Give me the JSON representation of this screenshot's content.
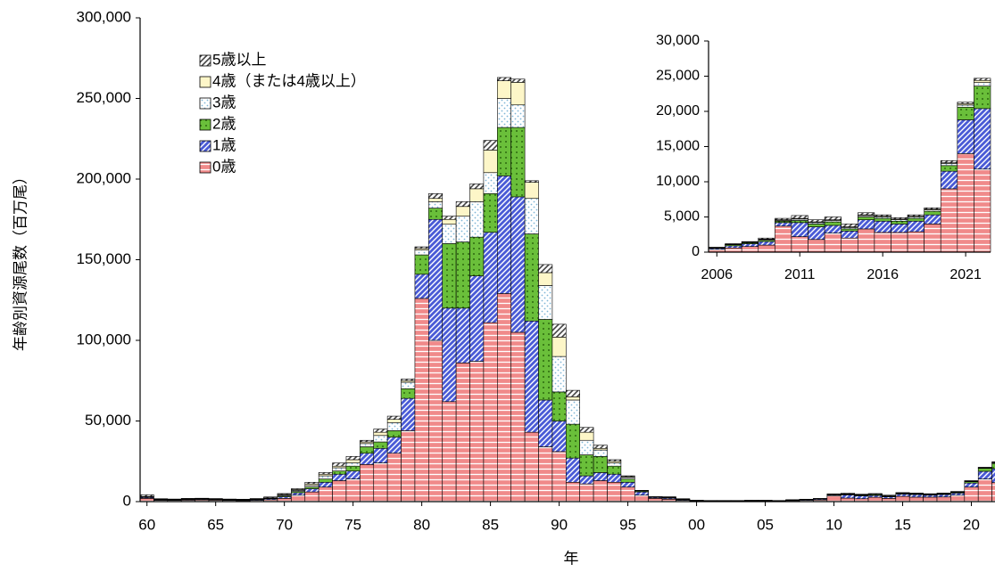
{
  "chart_data": [
    {
      "type": "bar",
      "stacked": true,
      "x_label": "年",
      "y_label": "年齢別資源尾数（百万尾）",
      "x": [
        1960,
        1961,
        1962,
        1963,
        1964,
        1965,
        1966,
        1967,
        1968,
        1969,
        1970,
        1971,
        1972,
        1973,
        1974,
        1975,
        1976,
        1977,
        1978,
        1979,
        1980,
        1981,
        1982,
        1983,
        1984,
        1985,
        1986,
        1987,
        1988,
        1989,
        1990,
        1991,
        1992,
        1993,
        1994,
        1995,
        1996,
        1997,
        1998,
        1999,
        2000,
        2001,
        2002,
        2003,
        2004,
        2005,
        2006,
        2007,
        2008,
        2009,
        2010,
        2011,
        2012,
        2013,
        2014,
        2015,
        2016,
        2017,
        2018,
        2019,
        2020,
        2021,
        2022
      ],
      "xlim": [
        1959.5,
        2022.5
      ],
      "xticks": [
        {
          "value": 1960,
          "label": "60"
        },
        {
          "value": 1965,
          "label": "65"
        },
        {
          "value": 1970,
          "label": "70"
        },
        {
          "value": 1975,
          "label": "75"
        },
        {
          "value": 1980,
          "label": "80"
        },
        {
          "value": 1985,
          "label": "85"
        },
        {
          "value": 1990,
          "label": "90"
        },
        {
          "value": 1995,
          "label": "95"
        },
        {
          "value": 2000,
          "label": "00"
        },
        {
          "value": 2005,
          "label": "05"
        },
        {
          "value": 2010,
          "label": "10"
        },
        {
          "value": 2015,
          "label": "15"
        },
        {
          "value": 2020,
          "label": "20"
        }
      ],
      "ylim": [
        0,
        300000
      ],
      "yticks": [
        0,
        {
          "value": 50000,
          "label": "50,000"
        },
        {
          "value": 100000,
          "label": "100,000"
        },
        {
          "value": 150000,
          "label": "150,000"
        },
        {
          "value": 200000,
          "label": "200,000"
        },
        {
          "value": 250000,
          "label": "250,000"
        },
        {
          "value": 300000,
          "label": "300,000"
        }
      ],
      "series": [
        {
          "name": "0歳",
          "color": "#f08a8a",
          "values": [
            2000,
            800,
            700,
            900,
            1000,
            900,
            700,
            600,
            800,
            1200,
            2000,
            4000,
            6000,
            9000,
            13000,
            14000,
            23000,
            24000,
            30000,
            44000,
            126000,
            100000,
            62000,
            86000,
            87000,
            111000,
            129000,
            105000,
            43000,
            34000,
            31000,
            12000,
            11000,
            13000,
            12000,
            9000,
            4000,
            2000,
            1500,
            800,
            400,
            300,
            300,
            300,
            400,
            400,
            400,
            600,
            800,
            1000,
            3700,
            2200,
            1800,
            2700,
            2000,
            3300,
            2800,
            2800,
            2900,
            4000,
            9000,
            14000,
            11800
          ]
        },
        {
          "name": "1歳",
          "color": "#4a5bd6",
          "values": [
            600,
            300,
            300,
            400,
            400,
            300,
            300,
            300,
            400,
            600,
            1000,
            1500,
            2000,
            3000,
            4000,
            5000,
            7000,
            9000,
            10000,
            20000,
            15000,
            75000,
            58000,
            34000,
            53000,
            56000,
            73000,
            84000,
            69000,
            29000,
            19000,
            15000,
            5000,
            5000,
            5000,
            3000,
            2000,
            600,
            600,
            400,
            200,
            200,
            200,
            200,
            200,
            200,
            150,
            300,
            400,
            500,
            500,
            2000,
            1800,
            1100,
            1000,
            1300,
            1600,
            1200,
            1500,
            1300,
            2500,
            4800,
            8600
          ]
        },
        {
          "name": "2歳",
          "color": "#6abf3a",
          "values": [
            300,
            200,
            200,
            200,
            200,
            200,
            200,
            200,
            200,
            300,
            500,
            800,
            1000,
            2000,
            2000,
            3000,
            4000,
            4000,
            4000,
            6000,
            12000,
            7000,
            40000,
            41000,
            24000,
            24000,
            30000,
            43000,
            54000,
            50000,
            18000,
            21000,
            13000,
            10000,
            5000,
            2000,
            500,
            200,
            300,
            200,
            100,
            100,
            100,
            100,
            100,
            100,
            50,
            150,
            150,
            200,
            200,
            300,
            400,
            500,
            300,
            400,
            400,
            400,
            400,
            500,
            800,
            1800,
            3200
          ]
        },
        {
          "name": "3歳",
          "color": "#7fb6d6",
          "values": [
            200,
            100,
            100,
            100,
            100,
            100,
            100,
            100,
            100,
            200,
            500,
            700,
            1000,
            2000,
            2000,
            2000,
            2000,
            4000,
            5000,
            4000,
            3000,
            4000,
            12000,
            16000,
            22000,
            13000,
            18000,
            14000,
            22000,
            21000,
            22000,
            15000,
            9000,
            4000,
            2000,
            1000,
            300,
            100,
            200,
            100,
            50,
            50,
            50,
            50,
            50,
            50,
            30,
            50,
            50,
            100,
            100,
            200,
            200,
            200,
            200,
            200,
            200,
            200,
            200,
            200,
            300,
            300,
            500
          ]
        },
        {
          "name": "4歳（または4歳以上）",
          "color": "#fdf6c8",
          "values": [
            100,
            100,
            100,
            100,
            100,
            100,
            100,
            100,
            100,
            100,
            500,
            500,
            1000,
            1000,
            1000,
            2000,
            1000,
            2000,
            2000,
            1000,
            1000,
            2000,
            3000,
            6000,
            8000,
            14000,
            11000,
            14000,
            10000,
            8000,
            12000,
            2000,
            5000,
            1000,
            1000,
            500,
            100,
            100,
            100,
            100,
            20,
            20,
            20,
            20,
            20,
            20,
            20,
            20,
            20,
            50,
            100,
            100,
            100,
            100,
            100,
            100,
            100,
            100,
            100,
            100,
            100,
            200,
            300
          ]
        },
        {
          "name": "5歳以上",
          "color": "#444444",
          "values": [
            1000,
            300,
            200,
            300,
            300,
            300,
            200,
            200,
            300,
            500,
            500,
            500,
            1000,
            1000,
            2000,
            2000,
            1000,
            2000,
            2000,
            1000,
            1000,
            3000,
            2000,
            3000,
            3000,
            6000,
            2000,
            2000,
            1000,
            5000,
            8000,
            4000,
            3000,
            2000,
            1000,
            500,
            100,
            100,
            300,
            200,
            30,
            30,
            30,
            30,
            30,
            30,
            50,
            80,
            80,
            150,
            200,
            400,
            300,
            400,
            400,
            300,
            200,
            200,
            200,
            200,
            300,
            200,
            300
          ]
        }
      ]
    },
    {
      "type": "bar",
      "stacked": true,
      "inset_of": 0,
      "xlim": [
        2005.5,
        2022.5
      ],
      "xticks": [
        2006,
        2011,
        2016,
        2021
      ],
      "ylim": [
        0,
        30000
      ],
      "yticks": [
        0,
        {
          "value": 5000,
          "label": "5,000"
        },
        {
          "value": 10000,
          "label": "10,000"
        },
        {
          "value": 15000,
          "label": "15,000"
        },
        {
          "value": 20000,
          "label": "20,000"
        },
        {
          "value": 25000,
          "label": "25,000"
        },
        {
          "value": 30000,
          "label": "30,000"
        }
      ]
    }
  ]
}
